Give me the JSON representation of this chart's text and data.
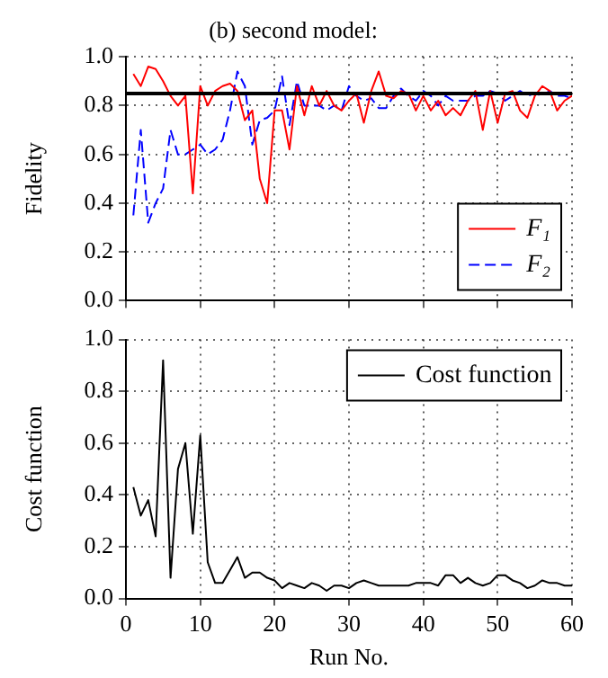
{
  "chart_data": [
    {
      "type": "line",
      "title": "(b) second model:",
      "ylabel": "Fidelity",
      "x": [
        1,
        2,
        3,
        4,
        5,
        6,
        7,
        8,
        9,
        10,
        11,
        12,
        13,
        14,
        15,
        16,
        17,
        18,
        19,
        20,
        21,
        22,
        23,
        24,
        25,
        26,
        27,
        28,
        29,
        30,
        31,
        32,
        33,
        34,
        35,
        36,
        37,
        38,
        39,
        40,
        41,
        42,
        43,
        44,
        45,
        46,
        47,
        48,
        49,
        50,
        51,
        52,
        53,
        54,
        55,
        56,
        57,
        58,
        59,
        60
      ],
      "series": [
        {
          "name": "F₁",
          "color": "#ff0000",
          "line_style": "solid",
          "values": [
            0.93,
            0.88,
            0.96,
            0.95,
            0.9,
            0.84,
            0.8,
            0.84,
            0.44,
            0.88,
            0.8,
            0.86,
            0.88,
            0.89,
            0.86,
            0.74,
            0.78,
            0.5,
            0.4,
            0.78,
            0.78,
            0.62,
            0.88,
            0.76,
            0.88,
            0.8,
            0.86,
            0.8,
            0.78,
            0.82,
            0.85,
            0.73,
            0.86,
            0.94,
            0.84,
            0.83,
            0.86,
            0.85,
            0.78,
            0.84,
            0.78,
            0.82,
            0.76,
            0.79,
            0.76,
            0.82,
            0.86,
            0.7,
            0.86,
            0.73,
            0.85,
            0.86,
            0.78,
            0.75,
            0.84,
            0.88,
            0.86,
            0.78,
            0.82,
            0.84
          ]
        },
        {
          "name": "F₂",
          "color": "#0000ff",
          "line_style": "dashed",
          "values": [
            0.35,
            0.7,
            0.32,
            0.4,
            0.46,
            0.7,
            0.6,
            0.6,
            0.62,
            0.64,
            0.6,
            0.62,
            0.66,
            0.78,
            0.94,
            0.88,
            0.64,
            0.74,
            0.75,
            0.78,
            0.92,
            0.72,
            0.9,
            0.8,
            0.8,
            0.8,
            0.78,
            0.8,
            0.78,
            0.88,
            0.84,
            0.82,
            0.83,
            0.79,
            0.79,
            0.84,
            0.87,
            0.84,
            0.82,
            0.86,
            0.84,
            0.8,
            0.84,
            0.82,
            0.82,
            0.82,
            0.84,
            0.84,
            0.86,
            0.85,
            0.82,
            0.84,
            0.86,
            0.84,
            0.85,
            0.84,
            0.86,
            0.84,
            0.84,
            0.83
          ]
        }
      ],
      "ref_lines": [
        {
          "axis": "y",
          "value": 0.85,
          "color": "#000000"
        }
      ],
      "xlim": [
        0,
        60
      ],
      "xticks": [
        0,
        10,
        20,
        30,
        40,
        50,
        60
      ],
      "ylim": [
        0,
        1
      ],
      "yticks": [
        {
          "value": 0,
          "label": "0.0"
        },
        {
          "value": 0.2,
          "label": "0.2"
        },
        {
          "value": 0.4,
          "label": "0.4"
        },
        {
          "value": 0.6,
          "label": "0.6"
        },
        {
          "value": 0.8,
          "label": "0.8"
        },
        {
          "value": 1,
          "label": "1.0"
        }
      ],
      "grid": true,
      "legend": "bottom right",
      "tick_labels": "y",
      "marker": "none"
    },
    {
      "type": "line",
      "xlabel": "Run No.",
      "ylabel": "Cost function",
      "x": [
        1,
        2,
        3,
        4,
        5,
        6,
        7,
        8,
        9,
        10,
        11,
        12,
        13,
        14,
        15,
        16,
        17,
        18,
        19,
        20,
        21,
        22,
        23,
        24,
        25,
        26,
        27,
        28,
        29,
        30,
        31,
        32,
        33,
        34,
        35,
        36,
        37,
        38,
        39,
        40,
        41,
        42,
        43,
        44,
        45,
        46,
        47,
        48,
        49,
        50,
        51,
        52,
        53,
        54,
        55,
        56,
        57,
        58,
        59,
        60
      ],
      "series": [
        {
          "name": "Cost function",
          "color": "#000000",
          "line_style": "solid",
          "values": [
            0.43,
            0.32,
            0.38,
            0.24,
            0.92,
            0.08,
            0.5,
            0.6,
            0.25,
            0.63,
            0.14,
            0.06,
            0.06,
            0.11,
            0.16,
            0.08,
            0.1,
            0.1,
            0.08,
            0.07,
            0.04,
            0.06,
            0.05,
            0.04,
            0.06,
            0.05,
            0.03,
            0.05,
            0.05,
            0.04,
            0.06,
            0.07,
            0.06,
            0.05,
            0.05,
            0.05,
            0.05,
            0.05,
            0.06,
            0.06,
            0.06,
            0.05,
            0.09,
            0.09,
            0.06,
            0.08,
            0.06,
            0.05,
            0.06,
            0.09,
            0.09,
            0.07,
            0.06,
            0.04,
            0.05,
            0.07,
            0.06,
            0.06,
            0.05,
            0.05
          ]
        }
      ],
      "xlim": [
        0,
        60
      ],
      "xticks": [
        0,
        10,
        20,
        30,
        40,
        50,
        60
      ],
      "ylim": [
        0,
        1
      ],
      "yticks": [
        {
          "value": 0,
          "label": "0.0"
        },
        {
          "value": 0.2,
          "label": "0.2"
        },
        {
          "value": 0.4,
          "label": "0.4"
        },
        {
          "value": 0.6,
          "label": "0.6"
        },
        {
          "value": 0.8,
          "label": "0.8"
        },
        {
          "value": 1,
          "label": "1.0"
        }
      ],
      "grid": true,
      "legend": "top right",
      "marker": "none"
    }
  ]
}
